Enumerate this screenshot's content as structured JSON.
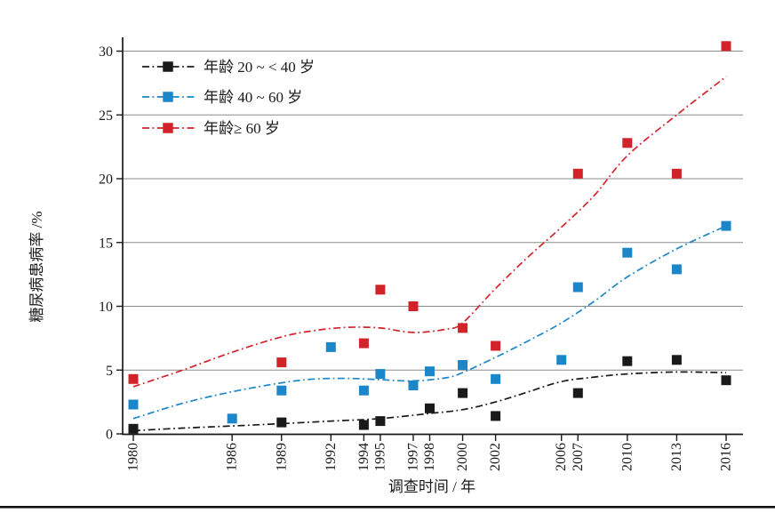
{
  "chart_data": {
    "type": "scatter",
    "title": "",
    "xlabel": "调查时间 / 年",
    "ylabel": "糖尿病患病率 /%",
    "x_tick_years": [
      1980,
      1986,
      1989,
      1992,
      1994,
      1995,
      1997,
      1998,
      2000,
      2002,
      2006,
      2007,
      2010,
      2013,
      2016
    ],
    "y_ticks": [
      0,
      5,
      10,
      15,
      20,
      25,
      30
    ],
    "xlim": [
      1979.2,
      2017
    ],
    "ylim": [
      0,
      31.2
    ],
    "grid": "horizontal-gridlines-on",
    "legend_position": "top-left-inside",
    "marker": "filled-square",
    "line_style": "dash-dot-trend-line",
    "series": [
      {
        "name": "年龄 20 ~ < 40 岁",
        "color": "#1a1a1a",
        "points": [
          [
            1980,
            0.4
          ],
          [
            1989,
            0.9
          ],
          [
            1994,
            0.7
          ],
          [
            1995,
            1.0
          ],
          [
            1998,
            2.0
          ],
          [
            2000,
            3.2
          ],
          [
            2002,
            1.4
          ],
          [
            2007,
            3.2
          ],
          [
            2010,
            5.7
          ],
          [
            2013,
            5.8
          ],
          [
            2016,
            4.2
          ]
        ],
        "trend": [
          [
            1980,
            0.25
          ],
          [
            1983,
            0.45
          ],
          [
            1986,
            0.62
          ],
          [
            1989,
            0.8
          ],
          [
            1992,
            1.0
          ],
          [
            1995,
            1.2
          ],
          [
            1998,
            1.6
          ],
          [
            2000,
            1.9
          ],
          [
            2002,
            2.5
          ],
          [
            2004,
            3.3
          ],
          [
            2006,
            4.1
          ],
          [
            2008,
            4.45
          ],
          [
            2010,
            4.7
          ],
          [
            2013,
            4.85
          ],
          [
            2016,
            4.8
          ]
        ]
      },
      {
        "name": "年龄 40 ~ 60 岁",
        "color": "#1b86c8",
        "points": [
          [
            1980,
            2.3
          ],
          [
            1986,
            1.2
          ],
          [
            1989,
            3.4
          ],
          [
            1992,
            6.8
          ],
          [
            1994,
            3.4
          ],
          [
            1995,
            4.7
          ],
          [
            1997,
            3.8
          ],
          [
            1998,
            4.9
          ],
          [
            2000,
            5.4
          ],
          [
            2002,
            4.3
          ],
          [
            2006,
            5.8
          ],
          [
            2007,
            11.5
          ],
          [
            2010,
            14.2
          ],
          [
            2013,
            12.9
          ],
          [
            2016,
            16.3
          ]
        ],
        "trend": [
          [
            1980,
            1.2
          ],
          [
            1983,
            2.4
          ],
          [
            1986,
            3.3
          ],
          [
            1989,
            4.0
          ],
          [
            1991,
            4.3
          ],
          [
            1993,
            4.35
          ],
          [
            1995,
            4.25
          ],
          [
            1997,
            4.15
          ],
          [
            1999,
            4.4
          ],
          [
            2000,
            4.8
          ],
          [
            2002,
            6.0
          ],
          [
            2004,
            7.3
          ],
          [
            2006,
            8.7
          ],
          [
            2008,
            10.4
          ],
          [
            2010,
            12.3
          ],
          [
            2013,
            14.5
          ],
          [
            2016,
            16.3
          ]
        ]
      },
      {
        "name": "年龄≥ 60 岁",
        "color": "#d2232a",
        "points": [
          [
            1980,
            4.3
          ],
          [
            1989,
            5.6
          ],
          [
            1994,
            7.1
          ],
          [
            1995,
            11.3
          ],
          [
            1997,
            10.0
          ],
          [
            2000,
            8.3
          ],
          [
            2002,
            6.9
          ],
          [
            2007,
            20.4
          ],
          [
            2010,
            22.8
          ],
          [
            2013,
            20.4
          ],
          [
            2016,
            30.4
          ]
        ],
        "trend": [
          [
            1980,
            3.7
          ],
          [
            1983,
            5.0
          ],
          [
            1986,
            6.4
          ],
          [
            1989,
            7.6
          ],
          [
            1991,
            8.1
          ],
          [
            1993,
            8.35
          ],
          [
            1995,
            8.3
          ],
          [
            1997,
            7.95
          ],
          [
            1999,
            8.2
          ],
          [
            2000,
            8.7
          ],
          [
            2002,
            11.4
          ],
          [
            2004,
            13.9
          ],
          [
            2006,
            16.2
          ],
          [
            2008,
            18.7
          ],
          [
            2010,
            21.8
          ],
          [
            2013,
            25.0
          ],
          [
            2016,
            28.0
          ]
        ]
      }
    ],
    "colors": {
      "axis": "#1a1a1a",
      "grid": "#8c8c8c",
      "background": "#ffffff",
      "bottom_rule": "#111111"
    }
  }
}
